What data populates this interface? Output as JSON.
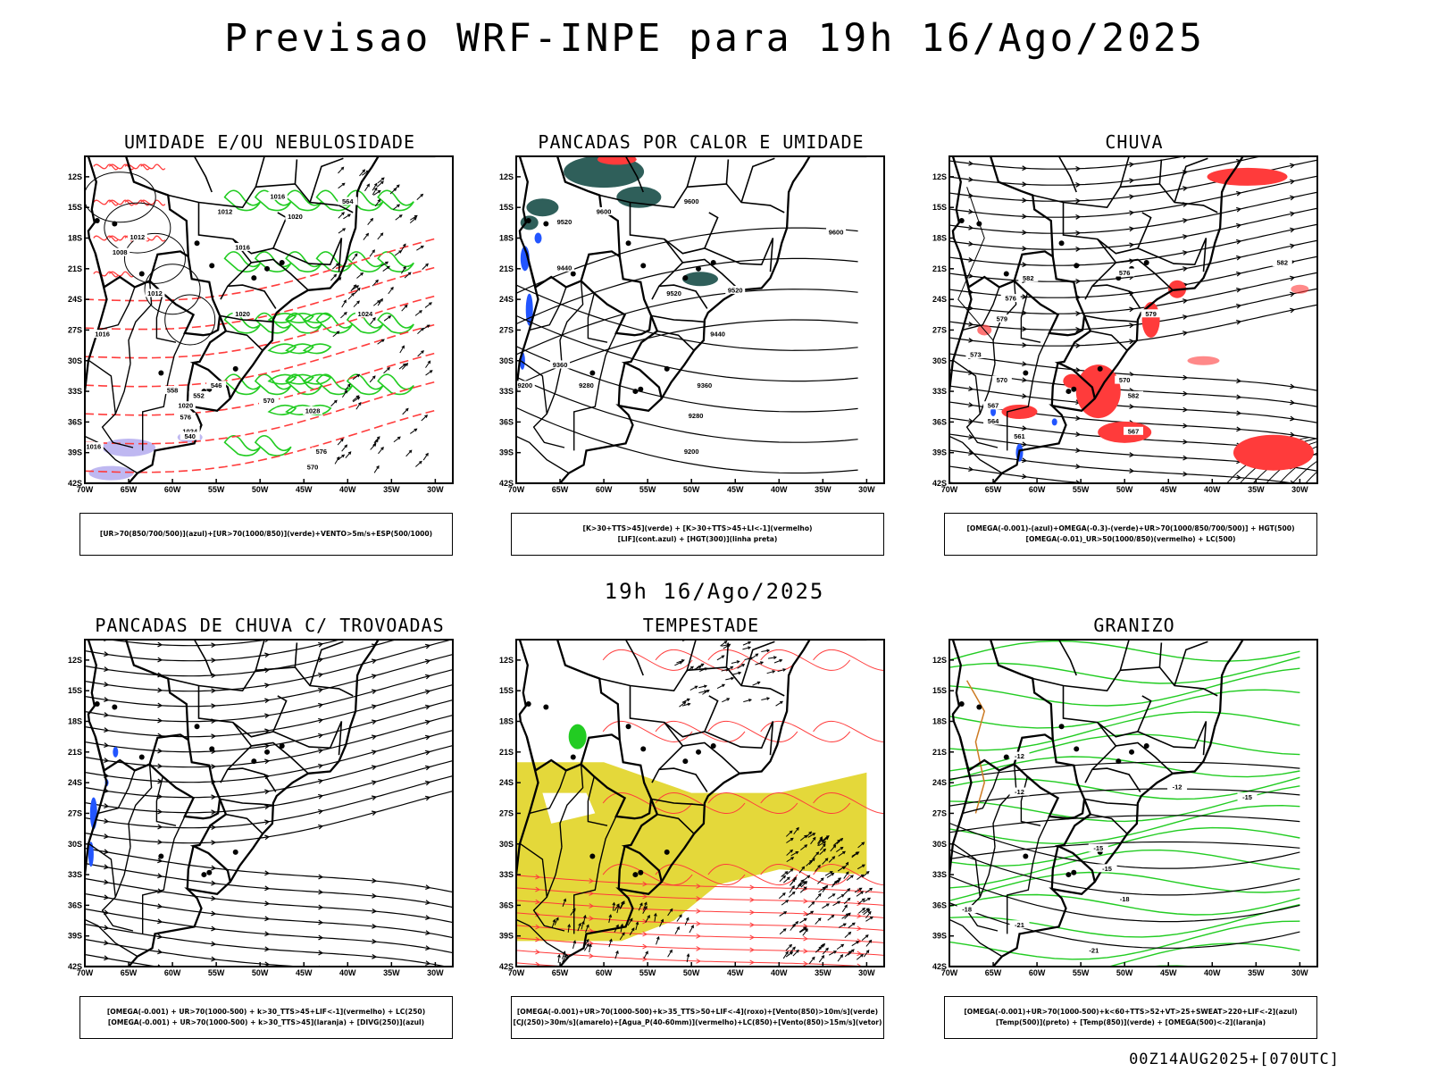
{
  "header": {
    "title": "Previsao WRF-INPE  para 19h 16/Ago/2025"
  },
  "row_time": "19h 16/Ago/2025",
  "run_info": "00Z14AUG2025+[070UTC]",
  "axes": {
    "lat_labels": [
      "12S",
      "15S",
      "18S",
      "21S",
      "24S",
      "27S",
      "30S",
      "33S",
      "36S",
      "39S",
      "42S"
    ],
    "lon_labels": [
      "70W",
      "65W",
      "60W",
      "55W",
      "50W",
      "45W",
      "40W",
      "35W",
      "30W"
    ]
  },
  "panels": [
    {
      "id": "umidade",
      "title": "UMIDADE E/OU NEBULOSIDADE",
      "caption": [
        "[UR>70(850/700/500)](azul)+[UR>70(1000/850)](verde)+VENTO>5m/s+ESP(500/1000)"
      ],
      "contour_labels": [
        "1016",
        "1012",
        "1020",
        "1008",
        "1012",
        "1016",
        "1024",
        "1016",
        "1020",
        "1012",
        "1028",
        "1024",
        "1016",
        "1020",
        "576",
        "570",
        "564",
        "558",
        "552",
        "546",
        "540",
        "576",
        "570"
      ]
    },
    {
      "id": "pancadas_calor",
      "title": "PANCADAS POR CALOR E UMIDADE",
      "caption": [
        "[K>30+TTS>45](verde) + [K>30+TTS>45+LI<-1](vermelho)",
        "[LIF](cont.azul) + [HGT(300)](linha preta)"
      ],
      "contour_labels": [
        "9600",
        "9600",
        "9520",
        "9600",
        "9440",
        "9520",
        "9520",
        "9440",
        "9360",
        "9280",
        "9360",
        "9280",
        "9200",
        "9200"
      ]
    },
    {
      "id": "chuva",
      "title": "CHUVA",
      "caption": [
        "[OMEGA(-0.001)-(azul)+OMEGA(-0.3)-(verde)+UR>70(1000/850/700/500)] + HGT(500)",
        "[OMEGA(-0.01)_UR>50(1000/850)(vermelho) + LC(500)"
      ],
      "contour_labels": [
        "582",
        "582",
        "576",
        "576",
        "579",
        "579",
        "573",
        "570",
        "567",
        "564",
        "561",
        "567",
        "570",
        "582"
      ]
    },
    {
      "id": "trovoadas",
      "title": "PANCADAS DE CHUVA C/ TROVOADAS",
      "caption": [
        "[OMEGA(-0.001) + UR>70(1000-500) + k>30_TTS>45+LIF<-1](vermelho) + LC(250)",
        "[OMEGA(-0.001) + UR>70(1000-500) + k>30_TTS>45](laranja) + [DIVG(250)](azul)"
      ],
      "contour_labels": []
    },
    {
      "id": "tempestade",
      "title": "TEMPESTADE",
      "caption": [
        "[OMEGA(-0.001)+UR>70(1000-500)+k>35_TTS>50+LIF<-4](roxo)+[Vento(850)>10m/s](verde)",
        "[CJ(250)>30m/s](amarelo)+[Agua_P(40-60mm)](vermelho)+LC(850)+[Vento(850)>15m/s](vetor)"
      ],
      "contour_labels": []
    },
    {
      "id": "granizo",
      "title": "GRANIZO",
      "caption": [
        "[OMEGA(-0.001)+UR>70(1000-500)+k<60+TTS>52+VT>25+SWEAT>220+LIF<-2](azul)",
        "[Temp(500)](preto) + [Temp(850)](verde) + [OMEGA(500)<-2](laranja)"
      ],
      "contour_labels": [
        "-12",
        "-12",
        "-15",
        "-15",
        "-18",
        "-18",
        "-21",
        "-21",
        "-15",
        "-12"
      ]
    }
  ],
  "colors": {
    "red": "#ff3b3b",
    "green": "#22cc22",
    "blue": "#2255ff",
    "lavender": "#b8b0f0",
    "yellow": "#e4d83a",
    "teal": "#2f5f5a",
    "black": "#000000",
    "orange": "#cc7a22"
  }
}
